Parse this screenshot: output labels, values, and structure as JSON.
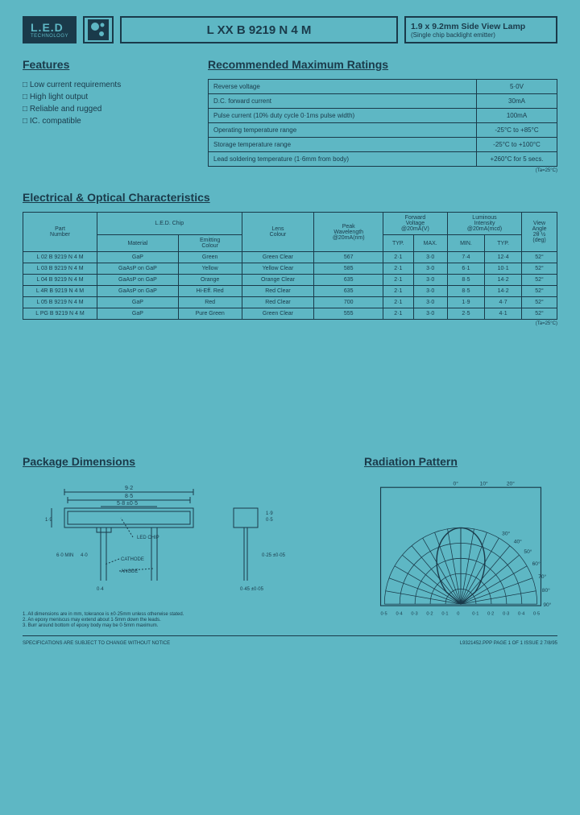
{
  "header": {
    "logo_big": "L.E.D",
    "logo_sm": "TECHNOLOGY",
    "part": "L XX B 9219 N 4 M",
    "title_main": "1.9 x 9.2mm Side View Lamp",
    "title_sub": "(Single chip backlight emitter)"
  },
  "features": {
    "title": "Features",
    "items": [
      "Low current requirements",
      "High light output",
      "Reliable and rugged",
      "IC. compatible"
    ]
  },
  "ratings": {
    "title": "Recommended Maximum Ratings",
    "rows": [
      [
        "Reverse voltage",
        "5·0V"
      ],
      [
        "D.C. forward current",
        "30mA"
      ],
      [
        "Pulse current (10% duty cycle 0·1ms pulse width)",
        "100mA"
      ],
      [
        "Operating temperature range",
        "-25°C to +85°C"
      ],
      [
        "Storage temperature range",
        "-25°C to +100°C"
      ],
      [
        "Lead soldering temperature (1·6mm from body)",
        "+260°C for 5 secs."
      ]
    ],
    "footnote": "(Ta=25°C)"
  },
  "elec": {
    "title": "Electrical & Optical Characteristics",
    "footnote": "(Ta=25°C)",
    "headers": {
      "part": "Part\nNumber",
      "chip": "L.E.D. Chip",
      "material": "Material",
      "emit_col": "Emitting\nColour",
      "lens": "Lens\nColour",
      "peak": "Peak\nWavelength\n@20mA(nm)",
      "fv": "Forward\nVoltage\n@20mA(V)",
      "li": "Luminous\nIntensity\n@20mA(mcd)",
      "angle": "View\nAngle\n2θ ½\n(deg)",
      "typ": "TYP.",
      "max": "MAX.",
      "min": "MIN."
    },
    "rows": [
      [
        "L 02 B 9219 N 4 M",
        "GaP",
        "Green",
        "Green Clear",
        "567",
        "2·1",
        "3·0",
        "7·4",
        "12·4",
        "52°"
      ],
      [
        "L 03 B 9219 N 4 M",
        "GaAsP on GaP",
        "Yellow",
        "Yellow Clear",
        "585",
        "2·1",
        "3·0",
        "6·1",
        "10·1",
        "52°"
      ],
      [
        "L 04 B 9219 N 4 M",
        "GaAsP on GaP",
        "Orange",
        "Orange Clear",
        "635",
        "2·1",
        "3·0",
        "8·5",
        "14·2",
        "52°"
      ],
      [
        "L 4R B 9219 N 4 M",
        "GaAsP on GaP",
        "Hi-Eff. Red",
        "Red Clear",
        "635",
        "2·1",
        "3·0",
        "8·5",
        "14·2",
        "52°"
      ],
      [
        "L 05 B 9219 N 4 M",
        "GaP",
        "Red",
        "Red Clear",
        "700",
        "2·1",
        "3·0",
        "1·9",
        "4·7",
        "52°"
      ],
      [
        "L PG B 9219 N 4 M",
        "GaP",
        "Pure Green",
        "Green Clear",
        "555",
        "2·1",
        "3·0",
        "2·5",
        "4·1",
        "52°"
      ]
    ]
  },
  "pkg": {
    "title": "Package Dimensions",
    "dims": {
      "w1": "9·2",
      "w2": "8·5",
      "w3": "5·8 ±0·5",
      "h1": "0·5",
      "h2": "1·9",
      "lead": "0·4",
      "lead_len1": "6·0 MIN",
      "lead_len2": "4·0",
      "sq": "0·45 ±0·05",
      "pitch": "0·25 ±0·05"
    },
    "labels": {
      "chip": "LED CHIP",
      "cathode": "CATHODE",
      "anode": "ANODE"
    },
    "notes": [
      "1. All dimensions are in mm, tolerance is ±0·25mm unless otherwise stated.",
      "2. An epoxy meniscus may extend about 1·5mm down the leads.",
      "3. Burr around bottom of epoxy body may be 0·5mm maximum."
    ]
  },
  "radiation": {
    "title": "Radiation Pattern",
    "angles": [
      "0°",
      "10°",
      "20°",
      "30°",
      "40°",
      "50°",
      "60°",
      "70°",
      "80°",
      "90°"
    ],
    "radii": [
      "0·5",
      "0·4",
      "0·3",
      "0·2",
      "0·1",
      "0",
      "0·1",
      "0·2",
      "0·3",
      "0·4",
      "0·5"
    ]
  },
  "footer": {
    "left": "SPECIFICATIONS ARE SUBJECT TO CHANGE WITHOUT NOTICE",
    "right": "L9321452.PPP  PAGE 1 OF 1  ISSUE 2  7/8/95"
  }
}
